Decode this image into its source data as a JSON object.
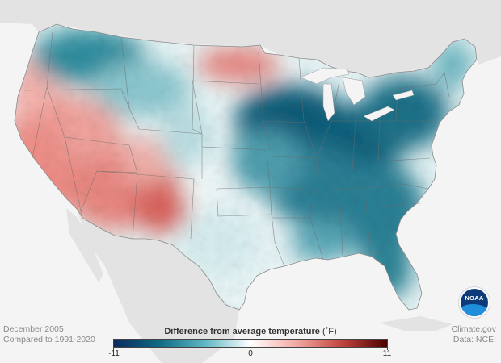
{
  "title": "Difference from average temperature",
  "unit": "(˚F)",
  "date": "December 2005",
  "baseline": "Compared to 1991-2020",
  "credit": "Climate.gov",
  "source": "Data: NCEI",
  "legend": {
    "min": -11,
    "mid": 0,
    "max": 11,
    "min_label": "-11",
    "mid_label": "0",
    "max_label": "11",
    "colors": [
      "#0b2a5c",
      "#0f6b84",
      "#5fb7c3",
      "#ffffff",
      "#f3a9a3",
      "#c2453f",
      "#4b0000"
    ]
  },
  "logo": {
    "name": "noaa-logo",
    "text": "NOAA"
  },
  "colors": {
    "background": "#f4f4f4",
    "land_outside": "#e3e3e3",
    "state_borders": "#6d6d6d"
  }
}
